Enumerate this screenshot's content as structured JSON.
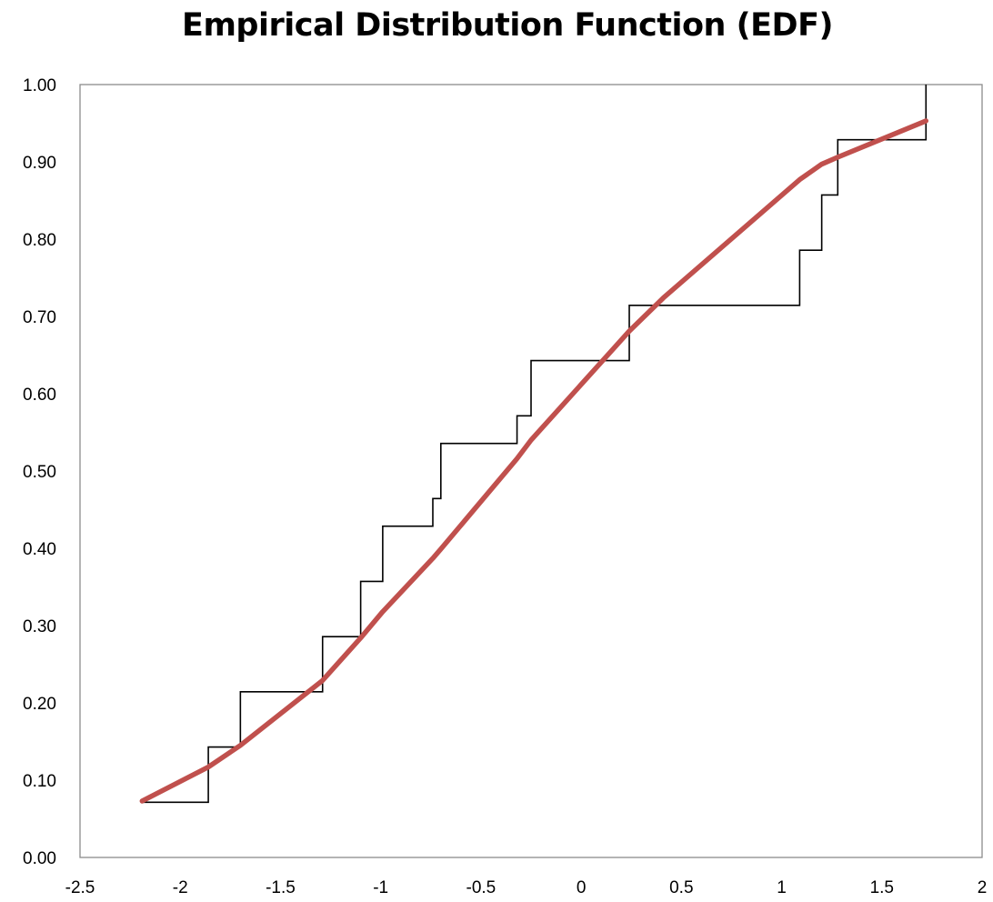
{
  "chart_data": {
    "type": "line",
    "title": "Empirical Distribution Function (EDF)",
    "xlabel": "",
    "ylabel": "",
    "xlim": [
      -2.5,
      2
    ],
    "ylim": [
      0,
      1
    ],
    "x_ticks": [
      "-2.5",
      "-2",
      "-1.5",
      "-1",
      "-0.5",
      "0",
      "0.5",
      "1",
      "1.5",
      "2"
    ],
    "y_ticks": [
      "0.00",
      "0.10",
      "0.20",
      "0.30",
      "0.40",
      "0.50",
      "0.60",
      "0.70",
      "0.80",
      "0.90",
      "1.00"
    ],
    "grid": false,
    "legend": "none",
    "series": [
      {
        "kind": "step",
        "color": "#000000",
        "x": [
          -2.19,
          -1.86,
          -1.7,
          -1.29,
          -1.1,
          -0.99,
          -0.74,
          -0.7,
          -0.32,
          -0.25,
          0.24,
          1.09,
          1.2,
          1.28,
          1.72
        ],
        "y": [
          0.0714,
          0.1429,
          0.2143,
          0.2857,
          0.3571,
          0.4286,
          0.4643,
          0.5357,
          0.5714,
          0.6429,
          0.7143,
          0.7857,
          0.8571,
          0.9286,
          1.0
        ]
      },
      {
        "kind": "smooth",
        "color": "#c0504d",
        "x": [
          -2.19,
          -1.86,
          -1.7,
          -1.29,
          -1.1,
          -0.99,
          -0.74,
          -0.7,
          -0.32,
          -0.25,
          0.24,
          0.41,
          1.09,
          1.2,
          1.28,
          1.72
        ],
        "y": [
          0.073,
          0.117,
          0.145,
          0.229,
          0.284,
          0.318,
          0.387,
          0.399,
          0.516,
          0.54,
          0.681,
          0.724,
          0.877,
          0.897,
          0.906,
          0.953
        ]
      }
    ]
  }
}
